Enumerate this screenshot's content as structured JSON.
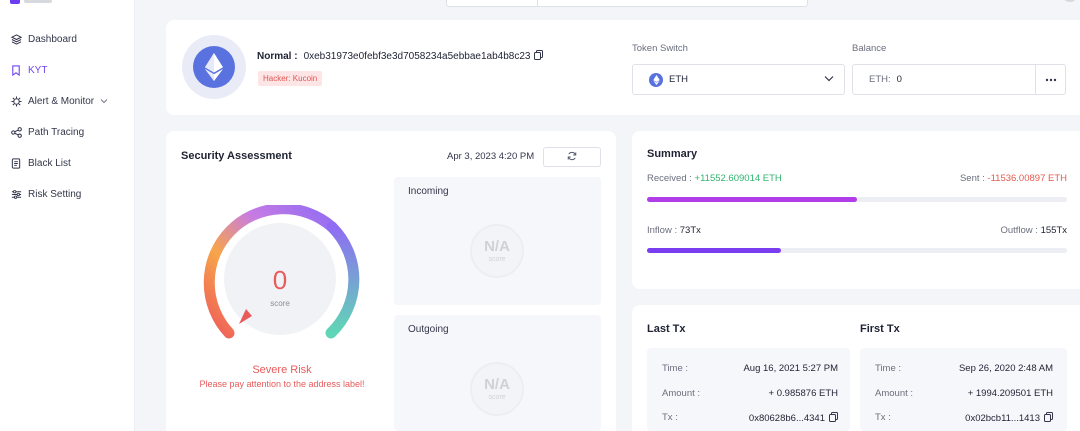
{
  "sidebar": {
    "items": [
      {
        "label": "Dashboard",
        "icon": "layers-icon",
        "active": false
      },
      {
        "label": "KYT",
        "icon": "bookmark-icon",
        "active": true
      },
      {
        "label": "Alert & Monitor",
        "icon": "alert-gear-icon",
        "active": false
      },
      {
        "label": "Path Tracing",
        "icon": "graph-icon",
        "active": false
      },
      {
        "label": "Black List",
        "icon": "document-icon",
        "active": false
      },
      {
        "label": "Risk Setting",
        "icon": "sliders-icon",
        "active": false
      }
    ]
  },
  "header": {
    "status_label": "Normal :",
    "address": "0xeb31973e0febf3e3d7058234a5ebbae1ab4b8c23",
    "tag": "Hacker: Kucoin",
    "token_switch_label": "Token Switch",
    "token_value": "ETH",
    "balance_label": "Balance",
    "balance_currency": "ETH:",
    "balance_value": "0"
  },
  "security": {
    "title": "Security Assessment",
    "date": "Apr 3, 2023 4:20 PM",
    "score": "0",
    "score_label": "score",
    "risk_level": "Severe Risk",
    "risk_note": "Please pay attention to the address label!",
    "incoming_label": "Incoming",
    "outgoing_label": "Outgoing",
    "na_text": "N/A",
    "na_sub": "score"
  },
  "summary": {
    "title": "Summary",
    "received_label": "Received :",
    "received_value": "+11552.609014 ETH",
    "sent_label": "Sent :",
    "sent_value": "-11536.00897 ETH",
    "inflow_label": "Inflow :",
    "inflow_value": "73Tx",
    "outflow_label": "Outflow :",
    "outflow_value": "155Tx",
    "received_bar_fraction": 0.5,
    "inflow_bar_fraction": 0.32
  },
  "last_tx": {
    "title": "Last Tx",
    "time_label": "Time :",
    "time": "Aug 16, 2021 5:27 PM",
    "amount_label": "Amount :",
    "amount": "+ 0.985876 ETH",
    "tx_label": "Tx :",
    "tx": "0x80628b6...4341"
  },
  "first_tx": {
    "title": "First Tx",
    "time_label": "Time :",
    "time": "Sep 26, 2020 2:48 AM",
    "amount_label": "Amount :",
    "amount": "+ 1994.209501 ETH",
    "tx_label": "Tx :",
    "tx": "0x02bcb11...1413"
  },
  "colors": {
    "accent": "#6d45f0",
    "risk_red": "#e85b5b",
    "received_green": "#2fb36e",
    "sent_red": "#e55b4e",
    "bar_received": "#b13de8",
    "bar_inflow": "#7a3df0"
  }
}
